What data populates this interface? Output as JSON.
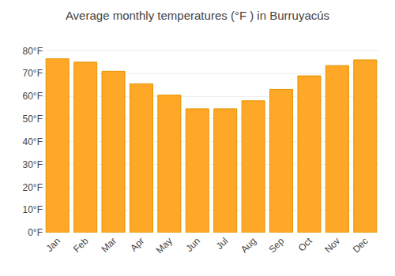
{
  "chart_data": {
    "type": "bar",
    "title": "Average monthly temperatures (°F ) in Burruyacús",
    "categories": [
      "Jan",
      "Feb",
      "Mar",
      "Apr",
      "May",
      "Jun",
      "Jul",
      "Aug",
      "Sep",
      "Oct",
      "Nov",
      "Dec"
    ],
    "values": [
      76.5,
      75.0,
      71.0,
      65.5,
      60.5,
      54.5,
      54.5,
      58.0,
      63.0,
      69.0,
      73.5,
      76.0
    ],
    "color": "#FFA726",
    "ylim": [
      0,
      85
    ],
    "yticks": [
      {
        "value": 0,
        "label": "0°F"
      },
      {
        "value": 10,
        "label": "10°F"
      },
      {
        "value": 20,
        "label": "20°F"
      },
      {
        "value": 30,
        "label": "30°F"
      },
      {
        "value": 40,
        "label": "40°F"
      },
      {
        "value": 50,
        "label": "50°F"
      },
      {
        "value": 60,
        "label": "60°F"
      },
      {
        "value": 70,
        "label": "70°F"
      },
      {
        "value": 80,
        "label": "80°F"
      }
    ],
    "grid": true
  }
}
